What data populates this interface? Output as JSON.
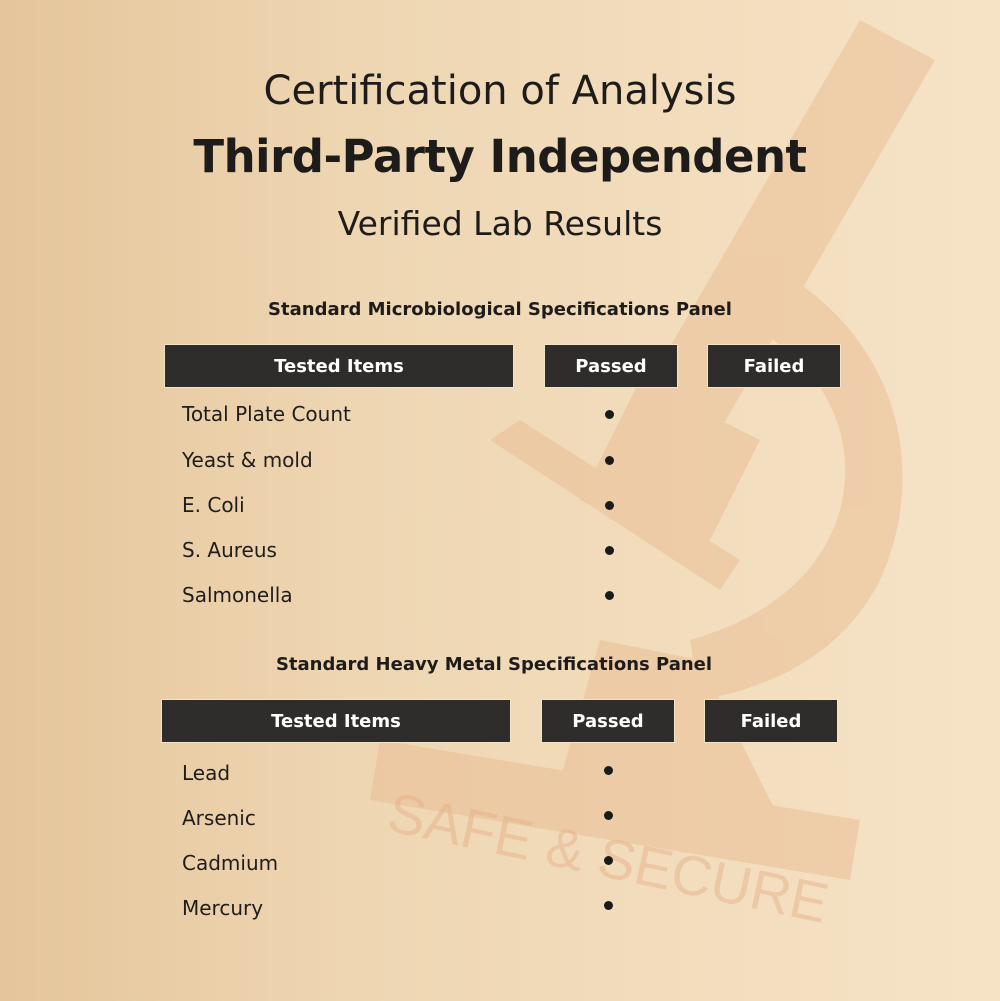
{
  "title": {
    "line1": "Certification of Analysis",
    "line2": "Third-Party Independent",
    "line3": "Verified Lab Results"
  },
  "watermark": {
    "text": "SAFE & SECURE",
    "icon": "microscope-icon",
    "color": "#e8b98f"
  },
  "colors": {
    "header_bg": "#2f2d2b",
    "header_text": "#ffffff"
  },
  "panels": [
    {
      "title": "Standard Microbiological Specifications Panel",
      "headers": [
        "Tested Items",
        "Passed",
        "Failed"
      ],
      "rows": [
        {
          "item": "Total Plate Count",
          "result": "passed"
        },
        {
          "item": "Yeast & mold",
          "result": "passed"
        },
        {
          "item": "E. Coli",
          "result": "passed"
        },
        {
          "item": "S. Aureus",
          "result": "passed"
        },
        {
          "item": "Salmonella",
          "result": "passed"
        }
      ]
    },
    {
      "title": "Standard Heavy Metal Specifications Panel",
      "headers": [
        "Tested Items",
        "Passed",
        "Failed"
      ],
      "rows": [
        {
          "item": "Lead",
          "result": "passed"
        },
        {
          "item": "Arsenic",
          "result": "passed"
        },
        {
          "item": "Cadmium",
          "result": "passed"
        },
        {
          "item": "Mercury",
          "result": "passed"
        }
      ]
    }
  ]
}
